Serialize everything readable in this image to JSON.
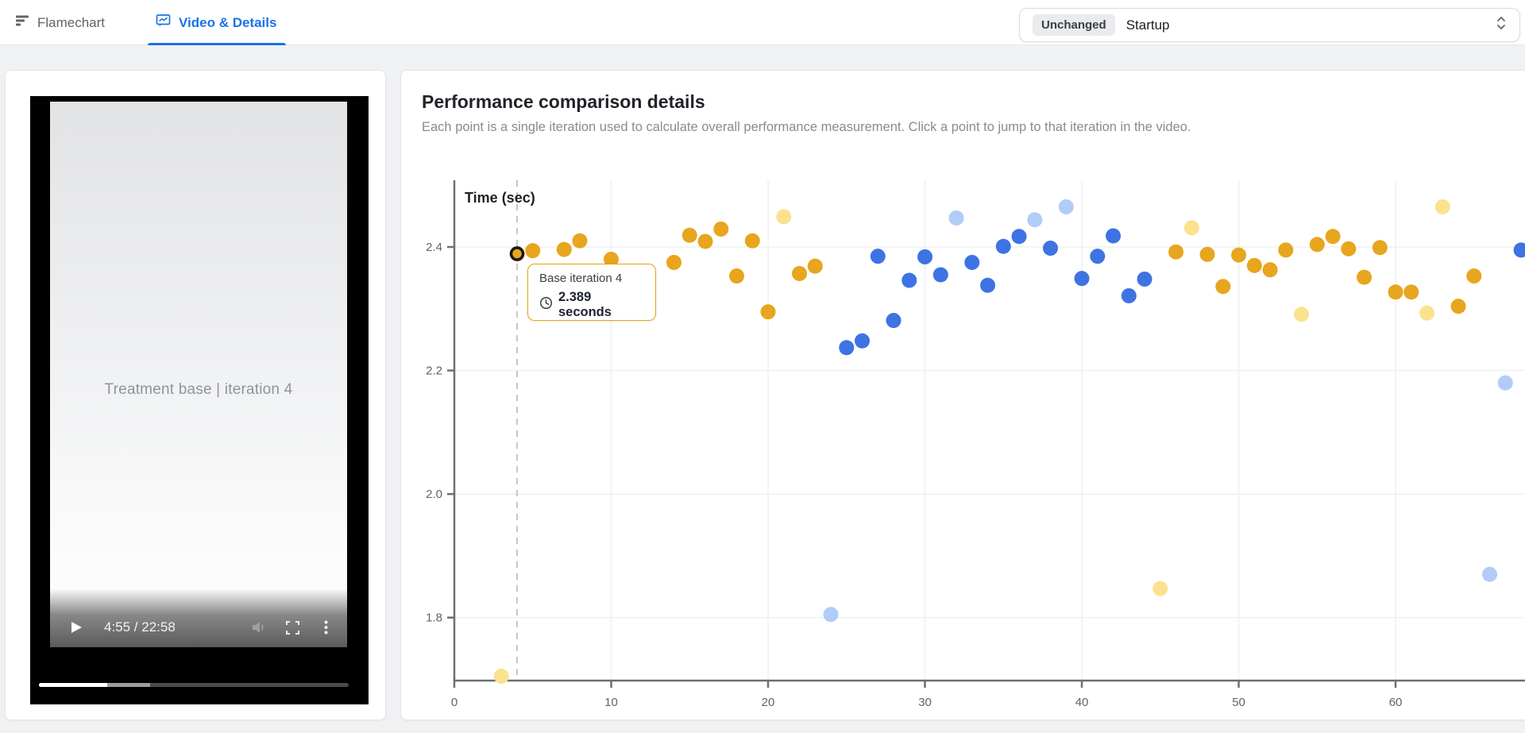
{
  "header": {
    "tabs": [
      {
        "label": "Flamechart",
        "active": false
      },
      {
        "label": "Video & Details",
        "active": true
      }
    ],
    "comparison_select": {
      "badge": "Unchanged",
      "value": "Startup"
    }
  },
  "video": {
    "overlay_title": "Treatment base | iteration 4",
    "time": "4:55 / 22:58",
    "progress_percent": 22,
    "buffered_percent": 36
  },
  "details": {
    "title": "Performance comparison details",
    "subtitle": "Each point is a single iteration used to calculate overall performance measurement. Click a point to jump to that iteration in the video."
  },
  "tooltip": {
    "title": "Base iteration 4",
    "value": "2.389 seconds"
  },
  "colors": {
    "base": "#E8A51E",
    "base_faded": "#FAE28E",
    "treatment": "#3D73E3",
    "treatment_faded": "#B1CCF8",
    "accent_blue": "#1A73E8",
    "axis": "#6A7076",
    "tick_text": "#5F6368",
    "grid": "#EDF1F3",
    "dashed_line": "#C4C7CC",
    "selected_ring": "#17191C",
    "tooltip_border": "#E7A30C"
  },
  "chart_data": {
    "type": "scatter",
    "title": "",
    "xlabel": "",
    "ylabel": "Time (sec)",
    "x_ticks": [
      0,
      10,
      20,
      30,
      40,
      50,
      60
    ],
    "y_ticks": [
      2.4,
      2.2,
      2.0,
      1.8
    ],
    "xlim": [
      0,
      68.3
    ],
    "ylim": [
      1.698,
      2.508
    ],
    "grid": true,
    "selected_point": {
      "series": "base",
      "x": 4,
      "y": 2.389,
      "label": "Base iteration 4"
    },
    "selected_marker_x": 4,
    "series": [
      {
        "name": "treatment_faded",
        "points": [
          [
            24,
            1.805
          ],
          [
            32,
            2.447
          ],
          [
            37,
            2.444
          ],
          [
            39,
            2.465
          ],
          [
            66,
            1.87
          ],
          [
            67,
            2.18
          ]
        ]
      },
      {
        "name": "base_faded",
        "points": [
          [
            3,
            1.705
          ],
          [
            21,
            2.449
          ],
          [
            45,
            1.847
          ],
          [
            47,
            2.431
          ],
          [
            54,
            2.291
          ],
          [
            62,
            2.293
          ],
          [
            63,
            2.465
          ]
        ]
      },
      {
        "name": "treatment",
        "points": [
          [
            25,
            2.237
          ],
          [
            26,
            2.248
          ],
          [
            27,
            2.385
          ],
          [
            28,
            2.281
          ],
          [
            29,
            2.346
          ],
          [
            30,
            2.384
          ],
          [
            31,
            2.355
          ],
          [
            33,
            2.375
          ],
          [
            34,
            2.338
          ],
          [
            35,
            2.401
          ],
          [
            36,
            2.417
          ],
          [
            38,
            2.398
          ],
          [
            40,
            2.349
          ],
          [
            41,
            2.385
          ],
          [
            42,
            2.418
          ],
          [
            43,
            2.321
          ],
          [
            44,
            2.348
          ],
          [
            68,
            2.395
          ]
        ]
      },
      {
        "name": "base",
        "points": [
          [
            4,
            2.389
          ],
          [
            5,
            2.394
          ],
          [
            7,
            2.396
          ],
          [
            8,
            2.41
          ],
          [
            10,
            2.38
          ],
          [
            14,
            2.375
          ],
          [
            15,
            2.419
          ],
          [
            16,
            2.409
          ],
          [
            17,
            2.429
          ],
          [
            18,
            2.353
          ],
          [
            19,
            2.41
          ],
          [
            20,
            2.295
          ],
          [
            22,
            2.357
          ],
          [
            23,
            2.369
          ],
          [
            46,
            2.392
          ],
          [
            48,
            2.388
          ],
          [
            49,
            2.336
          ],
          [
            50,
            2.387
          ],
          [
            51,
            2.37
          ],
          [
            52,
            2.363
          ],
          [
            53,
            2.395
          ],
          [
            55,
            2.404
          ],
          [
            56,
            2.417
          ],
          [
            57,
            2.397
          ],
          [
            58,
            2.351
          ],
          [
            59,
            2.399
          ],
          [
            60,
            2.327
          ],
          [
            61,
            2.327
          ],
          [
            64,
            2.304
          ],
          [
            65,
            2.353
          ]
        ]
      }
    ]
  }
}
